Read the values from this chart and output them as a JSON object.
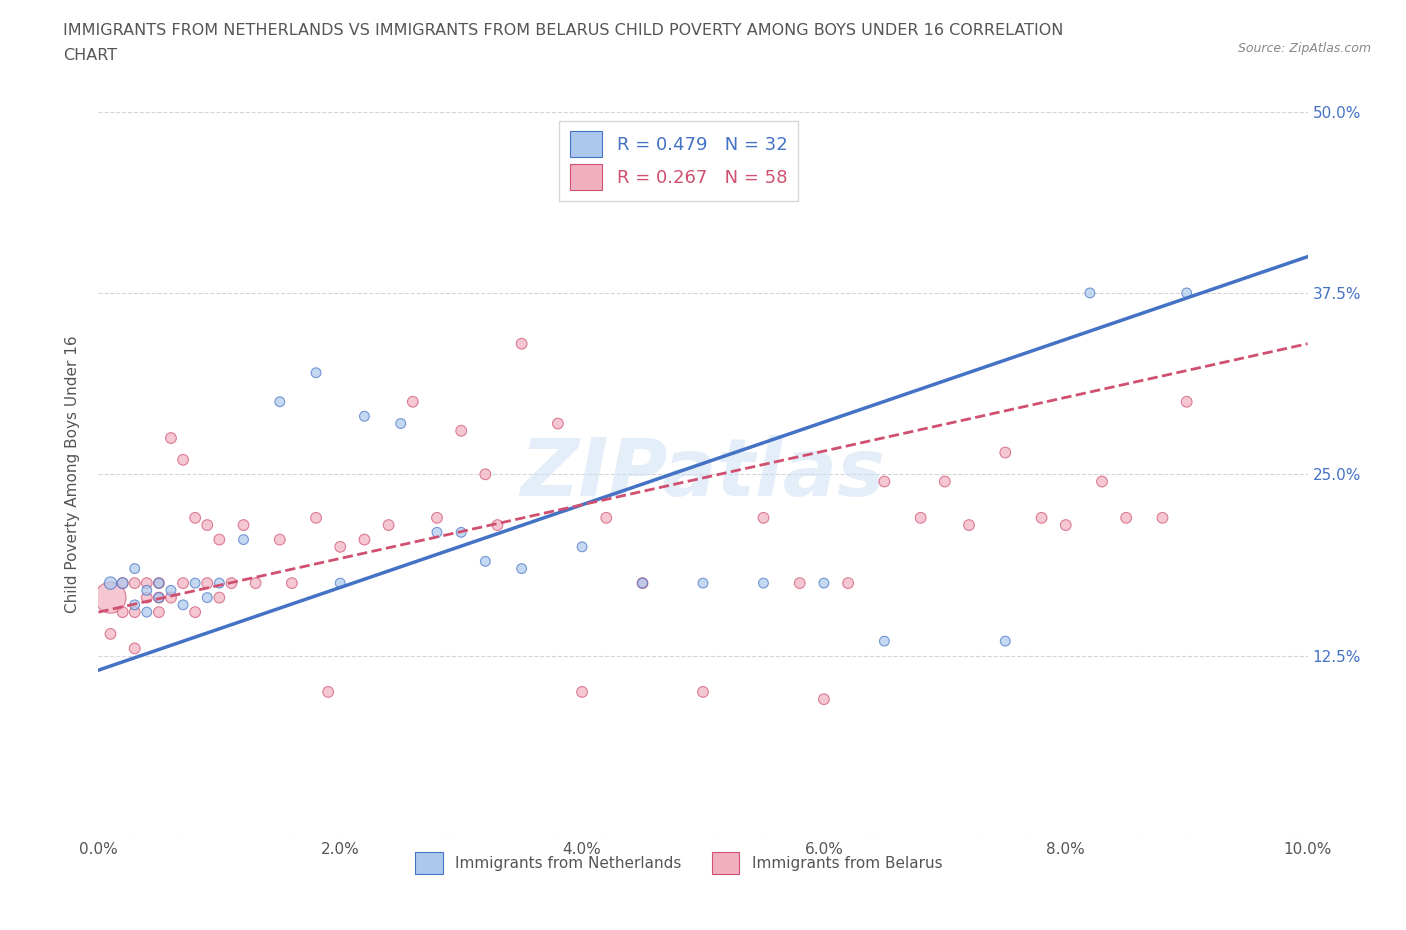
{
  "title_line1": "IMMIGRANTS FROM NETHERLANDS VS IMMIGRANTS FROM BELARUS CHILD POVERTY AMONG BOYS UNDER 16 CORRELATION",
  "title_line2": "CHART",
  "source_text": "Source: ZipAtlas.com",
  "ylabel": "Child Poverty Among Boys Under 16",
  "xlim": [
    0,
    0.1
  ],
  "ylim": [
    0,
    0.5
  ],
  "xticks": [
    0.0,
    0.02,
    0.04,
    0.06,
    0.08,
    0.1
  ],
  "yticks": [
    0.0,
    0.125,
    0.25,
    0.375,
    0.5
  ],
  "xticklabels": [
    "0.0%",
    "2.0%",
    "4.0%",
    "6.0%",
    "8.0%",
    "10.0%"
  ],
  "yticklabels_right": [
    "",
    "12.5%",
    "25.0%",
    "37.5%",
    "50.0%"
  ],
  "color_netherlands": "#adc8ed",
  "color_belarus": "#f0b0c0",
  "trendline_netherlands": "#4472c4",
  "trendline_belarus": "#d05070",
  "R_netherlands": 0.479,
  "N_netherlands": 32,
  "R_belarus": 0.267,
  "N_belarus": 58,
  "nl_intercept": 0.115,
  "nl_slope": 2.85,
  "bl_intercept": 0.155,
  "bl_slope": 1.85,
  "netherlands_x": [
    0.001,
    0.002,
    0.003,
    0.003,
    0.004,
    0.004,
    0.005,
    0.005,
    0.006,
    0.007,
    0.008,
    0.009,
    0.01,
    0.012,
    0.015,
    0.018,
    0.02,
    0.022,
    0.025,
    0.028,
    0.03,
    0.032,
    0.035,
    0.04,
    0.045,
    0.05,
    0.055,
    0.06,
    0.065,
    0.075,
    0.082,
    0.09
  ],
  "netherlands_y": [
    0.175,
    0.175,
    0.16,
    0.185,
    0.17,
    0.155,
    0.175,
    0.165,
    0.17,
    0.16,
    0.175,
    0.165,
    0.175,
    0.205,
    0.3,
    0.32,
    0.175,
    0.29,
    0.285,
    0.21,
    0.21,
    0.19,
    0.185,
    0.2,
    0.175,
    0.175,
    0.175,
    0.175,
    0.135,
    0.135,
    0.375,
    0.375
  ],
  "netherlands_sizes": [
    80,
    60,
    50,
    50,
    50,
    50,
    50,
    50,
    50,
    50,
    50,
    50,
    50,
    50,
    50,
    50,
    50,
    50,
    50,
    50,
    50,
    50,
    50,
    50,
    50,
    50,
    50,
    50,
    50,
    50,
    50,
    50
  ],
  "belarus_x": [
    0.001,
    0.001,
    0.002,
    0.002,
    0.003,
    0.003,
    0.003,
    0.004,
    0.004,
    0.005,
    0.005,
    0.005,
    0.006,
    0.006,
    0.007,
    0.007,
    0.008,
    0.008,
    0.009,
    0.009,
    0.01,
    0.01,
    0.011,
    0.012,
    0.013,
    0.015,
    0.016,
    0.018,
    0.019,
    0.02,
    0.022,
    0.024,
    0.026,
    0.028,
    0.03,
    0.032,
    0.033,
    0.035,
    0.038,
    0.04,
    0.042,
    0.045,
    0.05,
    0.055,
    0.058,
    0.06,
    0.062,
    0.065,
    0.068,
    0.07,
    0.072,
    0.075,
    0.078,
    0.08,
    0.083,
    0.085,
    0.088,
    0.09
  ],
  "belarus_y": [
    0.165,
    0.14,
    0.175,
    0.155,
    0.175,
    0.155,
    0.13,
    0.165,
    0.175,
    0.165,
    0.175,
    0.155,
    0.275,
    0.165,
    0.26,
    0.175,
    0.155,
    0.22,
    0.175,
    0.215,
    0.165,
    0.205,
    0.175,
    0.215,
    0.175,
    0.205,
    0.175,
    0.22,
    0.1,
    0.2,
    0.205,
    0.215,
    0.3,
    0.22,
    0.28,
    0.25,
    0.215,
    0.34,
    0.285,
    0.1,
    0.22,
    0.175,
    0.1,
    0.22,
    0.175,
    0.095,
    0.175,
    0.245,
    0.22,
    0.245,
    0.215,
    0.265,
    0.22,
    0.215,
    0.245,
    0.22,
    0.22,
    0.3
  ],
  "belarus_sizes": [
    500,
    60,
    60,
    60,
    60,
    60,
    60,
    60,
    60,
    60,
    60,
    60,
    60,
    60,
    60,
    60,
    60,
    60,
    60,
    60,
    60,
    60,
    60,
    60,
    60,
    60,
    60,
    60,
    60,
    60,
    60,
    60,
    60,
    60,
    60,
    60,
    60,
    60,
    60,
    60,
    60,
    60,
    60,
    60,
    60,
    60,
    60,
    60,
    60,
    60,
    60,
    60,
    60,
    60,
    60,
    60,
    60,
    60
  ]
}
